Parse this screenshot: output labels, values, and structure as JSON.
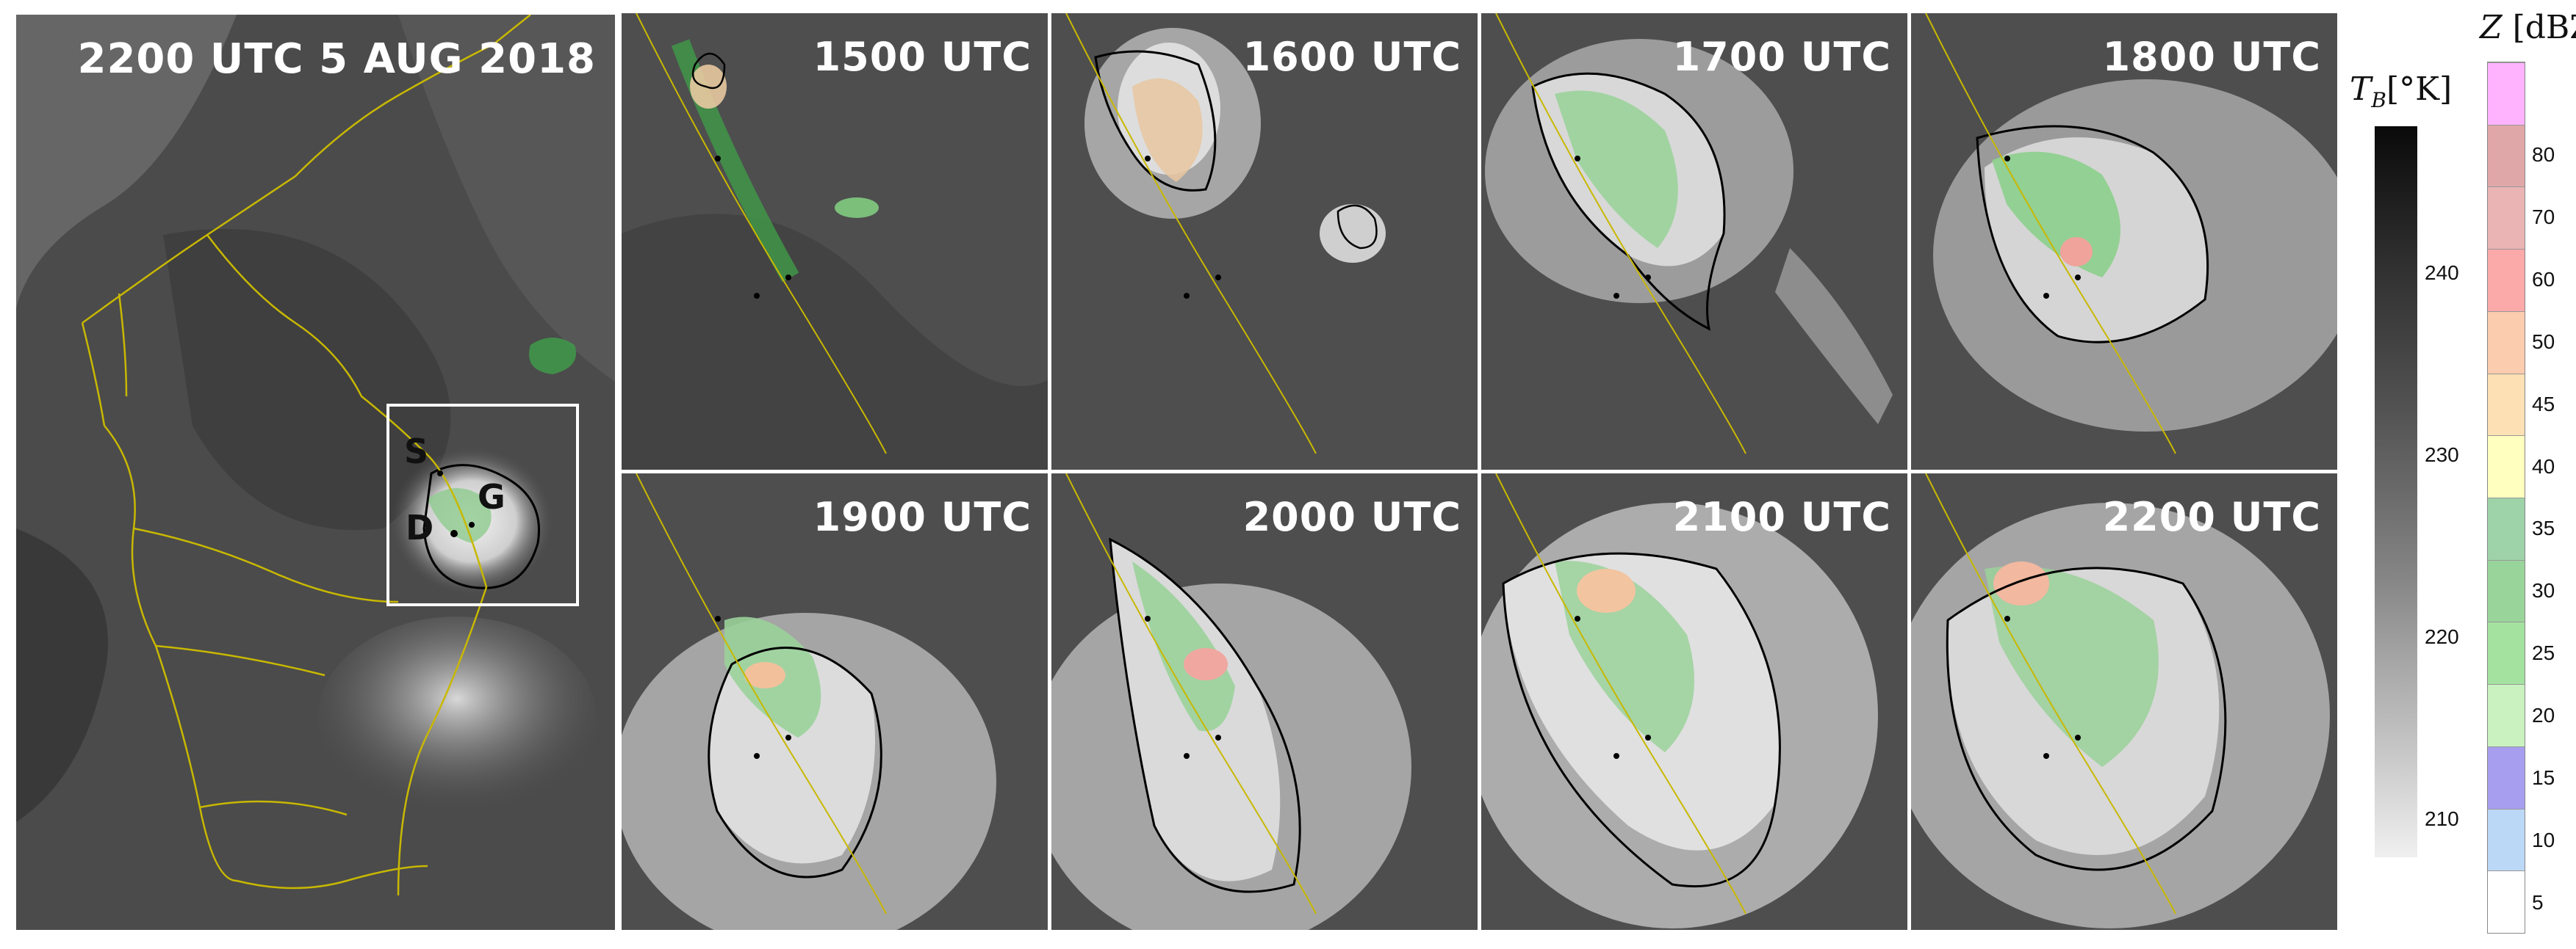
{
  "overview": {
    "title": "2200 UTC 5 AUG 2018",
    "labels": {
      "s": "S",
      "g": "G",
      "d": "D"
    }
  },
  "panels": [
    {
      "time": "1500 UTC"
    },
    {
      "time": "1600 UTC"
    },
    {
      "time": "1700 UTC"
    },
    {
      "time": "1800 UTC"
    },
    {
      "time": "1900 UTC"
    },
    {
      "time": "2000 UTC"
    },
    {
      "time": "2100 UTC"
    },
    {
      "time": "2200 UTC"
    }
  ],
  "tb_colorbar": {
    "symbol": "T",
    "subscript": "B",
    "unit": "[°K]",
    "ticks": [
      "240",
      "230",
      "220",
      "210"
    ],
    "range": [
      208,
      249
    ]
  },
  "z_colorbar": {
    "symbol": "Z",
    "unit": "[dBZ]",
    "ticks": [
      "80",
      "70",
      "60",
      "50",
      "45",
      "40",
      "35",
      "30",
      "25",
      "20",
      "15",
      "10",
      "5"
    ],
    "colors": [
      "#ffffff",
      "#bcd8f7",
      "#a79ef0",
      "#c9f2c0",
      "#a4e2a0",
      "#99d49a",
      "#9ed2a8",
      "#ffffc0",
      "#fde0b4",
      "#fcccae",
      "#fca9a9",
      "#eab4b4",
      "#dfa7a7",
      "#ffb3ff"
    ]
  },
  "colors": {
    "border": "#c8b800",
    "cloud_contour": "#000000",
    "frame": "#ffffff"
  }
}
